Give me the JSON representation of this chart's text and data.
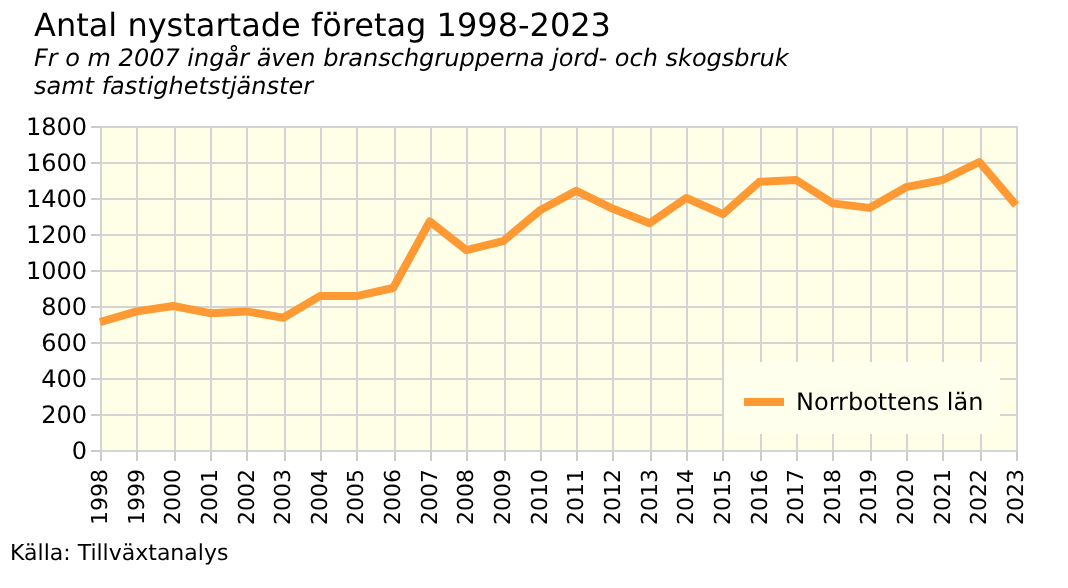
{
  "chart_data": {
    "type": "line",
    "title": "Antal nystartade företag 1998-2023",
    "subtitle": "Fr o m 2007 ingår även branschgrupperna jord- och skogsbruk\nsamt fastighetstjänster",
    "categories": [
      "1998",
      "1999",
      "2000",
      "2001",
      "2002",
      "2003",
      "2004",
      "2005",
      "2006",
      "2007",
      "2008",
      "2009",
      "2010",
      "2011",
      "2012",
      "2013",
      "2014",
      "2015",
      "2016",
      "2017",
      "2018",
      "2019",
      "2020",
      "2021",
      "2022",
      "2023"
    ],
    "series": [
      {
        "name": "Norrbottens län",
        "color": "#ff9933",
        "values": [
          710,
          770,
          800,
          760,
          770,
          735,
          855,
          855,
          900,
          1270,
          1110,
          1160,
          1330,
          1440,
          1340,
          1260,
          1400,
          1310,
          1490,
          1500,
          1370,
          1345,
          1460,
          1500,
          1600,
          1360
        ]
      }
    ],
    "ylim": [
      0,
      1800
    ],
    "yticks": [
      0,
      200,
      400,
      600,
      800,
      1000,
      1200,
      1400,
      1600,
      1800
    ],
    "grid": true,
    "legend": "bottom right",
    "marker": "none",
    "line_style": "solid",
    "annotations": [
      "Källa: Tillväxtanalys"
    ]
  }
}
